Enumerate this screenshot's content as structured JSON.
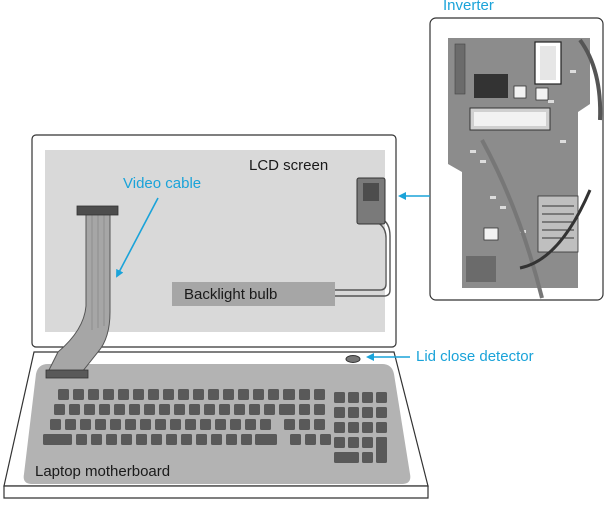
{
  "labels": {
    "inverter": "Inverter",
    "video_cable": "Video cable",
    "lcd_screen": "LCD screen",
    "backlight_bulb": "Backlight bulb",
    "lid_close_detector": "Lid close detector",
    "laptop_motherboard": "Laptop motherboard"
  },
  "colors": {
    "accent": "#1aa3d9",
    "outline": "#333333",
    "screen_fill": "#d9d9d9",
    "board_fill": "#b3b3b3",
    "key_fill": "#595959",
    "bulb_fill": "#a6a6a6",
    "inverter_board": "#8c8c8c"
  },
  "icons": {
    "arrow": "arrow-icon"
  }
}
